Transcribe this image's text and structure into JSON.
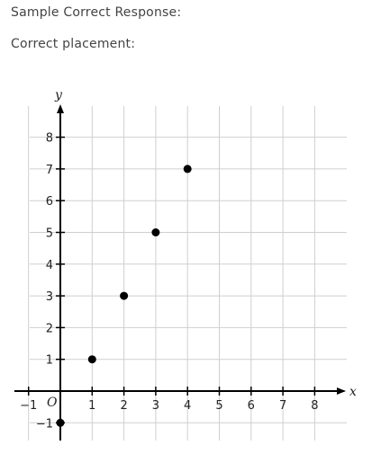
{
  "header": {
    "line1": "Sample Correct Response:",
    "line2": "Correct placement:"
  },
  "chart_data": {
    "type": "scatter",
    "xlabel": "x",
    "ylabel": "y",
    "origin_label": "O",
    "xlim": [
      -1,
      8
    ],
    "ylim": [
      -1,
      8
    ],
    "x_ticks": [
      -1,
      1,
      2,
      3,
      4,
      5,
      6,
      7,
      8
    ],
    "y_ticks": [
      -1,
      1,
      2,
      3,
      4,
      5,
      6,
      7,
      8
    ],
    "grid": true,
    "series": [
      {
        "points": [
          {
            "x": 0,
            "y": -1
          },
          {
            "x": 1,
            "y": 1
          },
          {
            "x": 2,
            "y": 3
          },
          {
            "x": 3,
            "y": 5
          },
          {
            "x": 4,
            "y": 7
          }
        ]
      }
    ],
    "colors": {
      "grid": "#cfcfcf",
      "axis": "#000000",
      "point": "#000000"
    }
  }
}
